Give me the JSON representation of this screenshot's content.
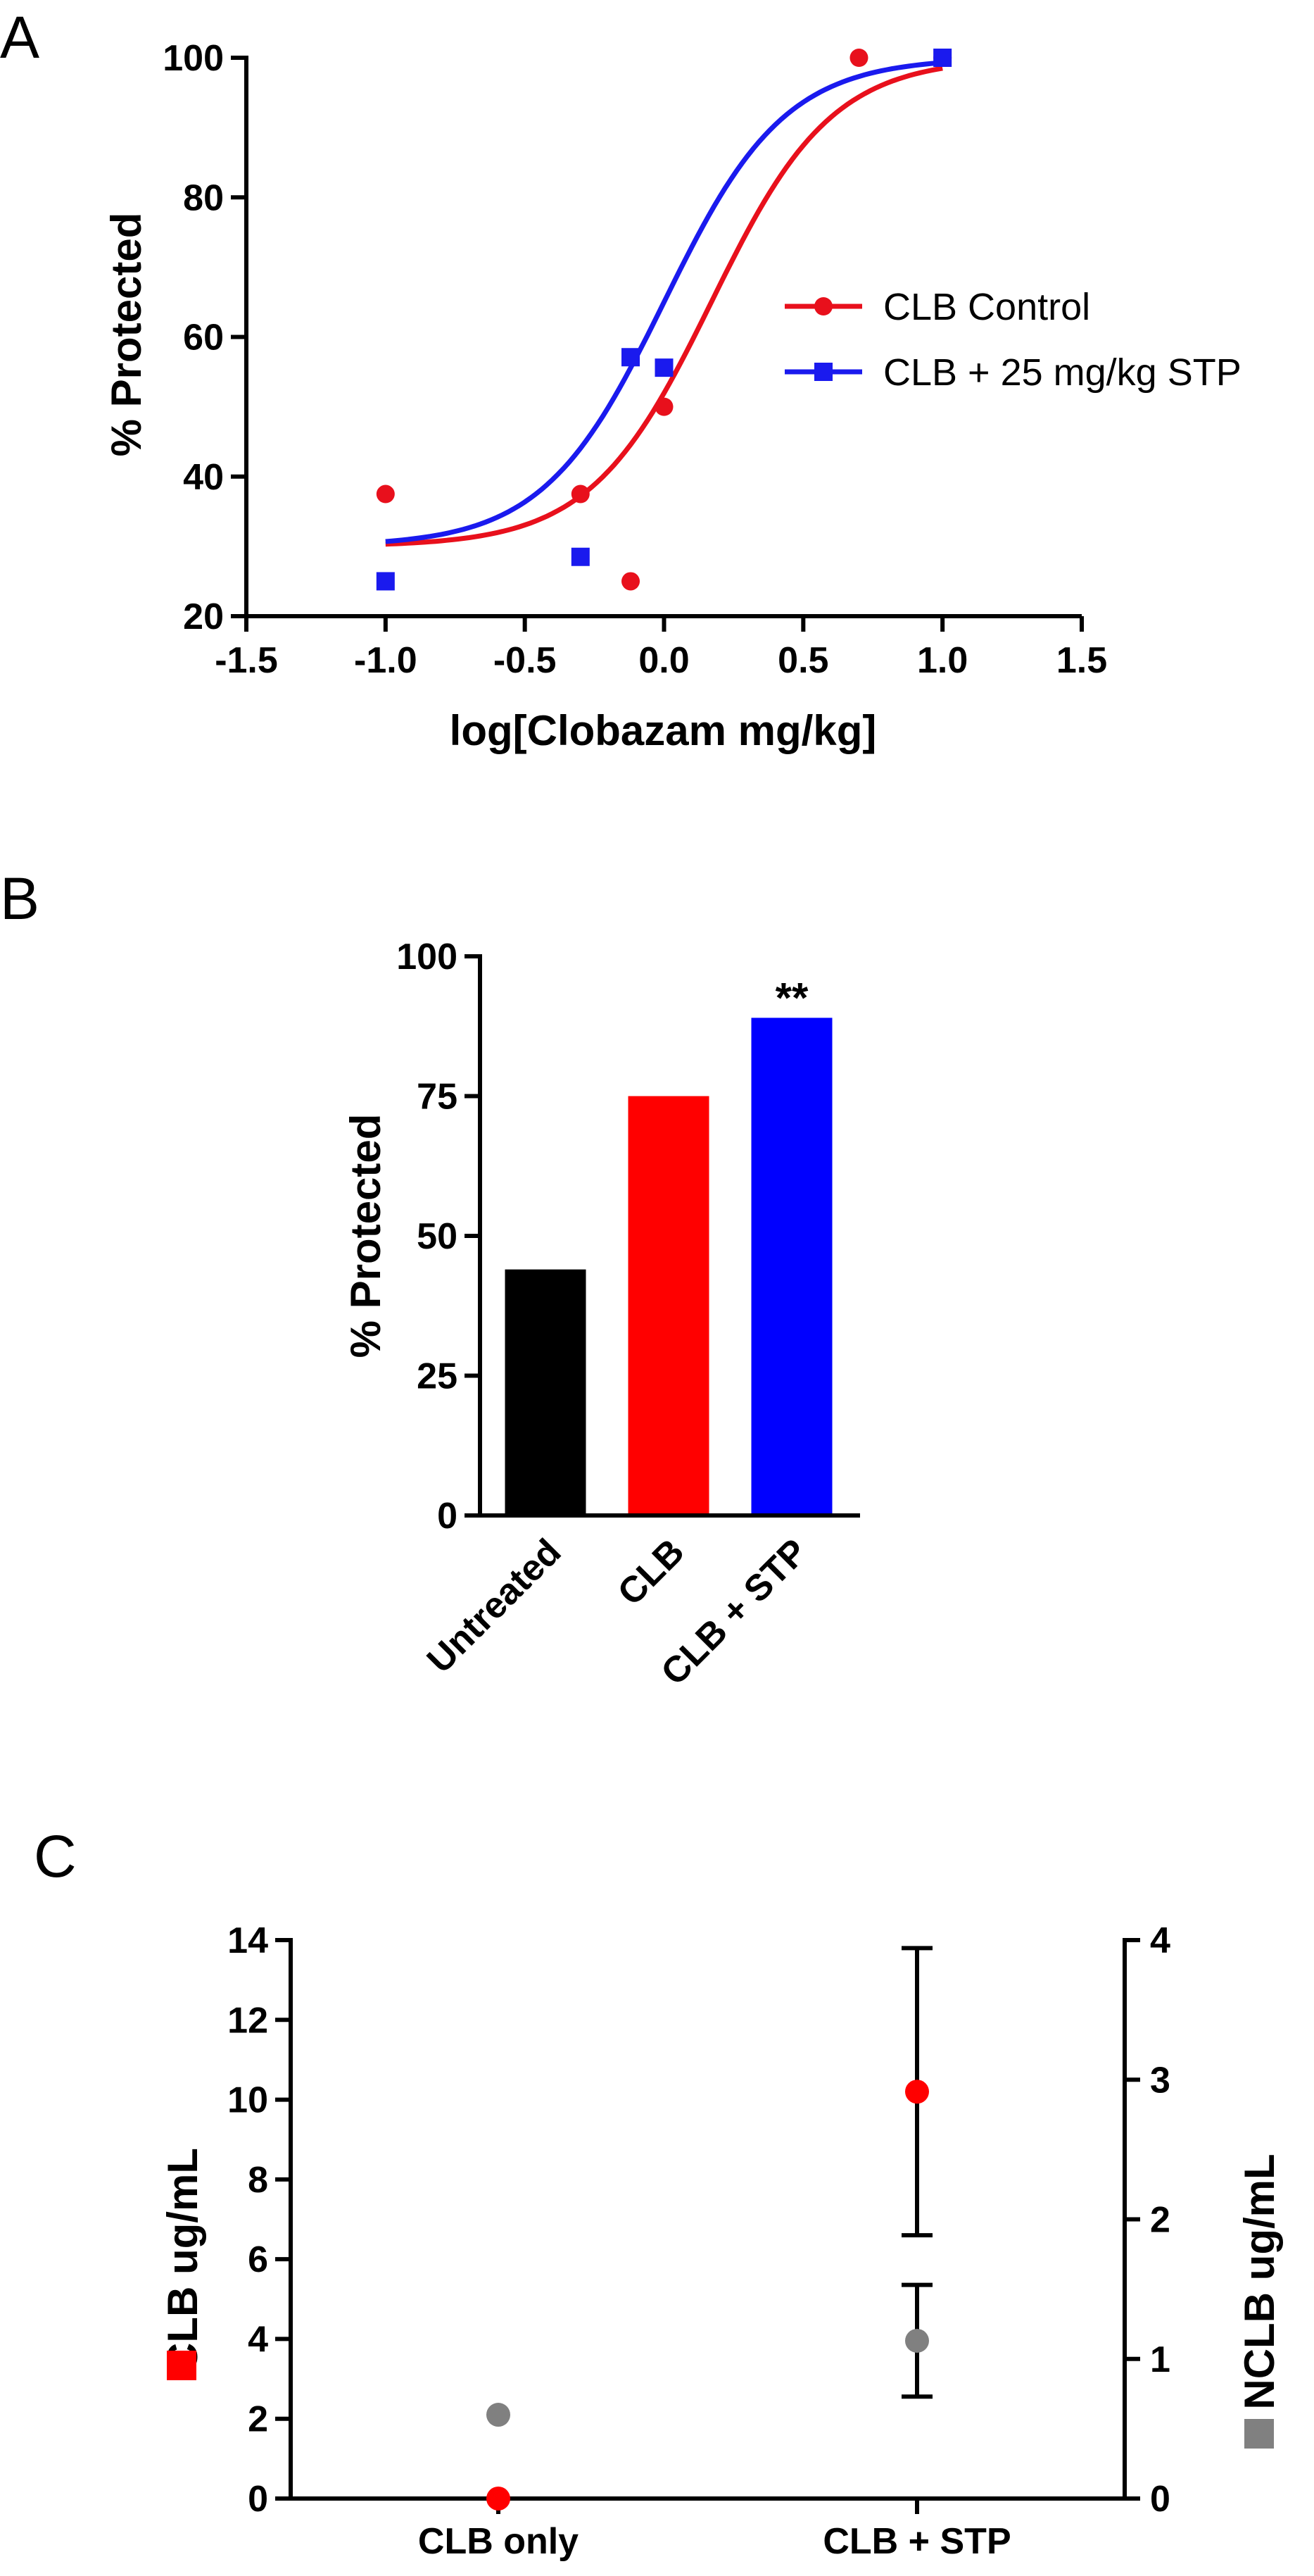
{
  "panels": {
    "a": "A",
    "b": "B",
    "c": "C"
  },
  "chart_data": [
    {
      "type": "scatter",
      "title": "",
      "xlabel": "log[Clobazam mg/kg]",
      "ylabel": "% Protected",
      "xlim": [
        -1.5,
        1.5
      ],
      "ylim": [
        20,
        100
      ],
      "x_ticks": [
        -1.5,
        -1.0,
        -0.5,
        0.0,
        0.5,
        1.0,
        1.5
      ],
      "x_tick_labels": [
        "-1.5",
        "-1.0",
        "-0.5",
        "0.0",
        "0.5",
        "1.0",
        "1.5"
      ],
      "y_ticks": [
        20,
        40,
        60,
        80,
        100
      ],
      "y_tick_labels": [
        "20",
        "40",
        "60",
        "80",
        "100"
      ],
      "legend_position": "right",
      "series": [
        {
          "name": "CLB Control",
          "color": "#e8101c",
          "marker": "circle",
          "points": [
            {
              "x": -1.0,
              "y": 37.5
            },
            {
              "x": -0.3,
              "y": 37.5
            },
            {
              "x": -0.12,
              "y": 25
            },
            {
              "x": 0.0,
              "y": 50
            },
            {
              "x": 0.7,
              "y": 100
            },
            {
              "x": 1.0,
              "y": 100
            }
          ],
          "fit": {
            "bottom": 30,
            "top": 100,
            "logEC50": 0.17,
            "hill": 2.0
          }
        },
        {
          "name": "CLB + 25 mg/kg STP",
          "color": "#1a1aee",
          "marker": "square",
          "points": [
            {
              "x": -1.0,
              "y": 25
            },
            {
              "x": -0.3,
              "y": 28.5
            },
            {
              "x": -0.12,
              "y": 57.1
            },
            {
              "x": 0.0,
              "y": 55.6
            },
            {
              "x": 1.0,
              "y": 100
            }
          ],
          "fit": {
            "bottom": 30,
            "top": 100,
            "logEC50": 0.0,
            "hill": 2.0
          }
        }
      ]
    },
    {
      "type": "bar",
      "title": "",
      "xlabel": "",
      "ylabel": "% Protected",
      "ylim": [
        0,
        100
      ],
      "y_ticks": [
        0,
        25,
        50,
        75,
        100
      ],
      "y_tick_labels": [
        "0",
        "25",
        "50",
        "75",
        "100"
      ],
      "categories": [
        "Untreated",
        "CLB",
        "CLB + STP"
      ],
      "values": [
        44,
        75,
        89
      ],
      "colors": [
        "#000000",
        "#ff0000",
        "#0000ff"
      ],
      "annotations": [
        {
          "category": "CLB + STP",
          "text": "**"
        }
      ]
    },
    {
      "type": "scatter",
      "title": "",
      "xlabel": "",
      "ylabel": "CLB ug/mL",
      "ylabel_right": "NCLB ug/mL",
      "ylim": [
        0,
        14
      ],
      "ylim_right": [
        0,
        4
      ],
      "y_ticks": [
        0,
        2,
        4,
        6,
        8,
        10,
        12,
        14
      ],
      "y_tick_labels": [
        "0",
        "2",
        "4",
        "6",
        "8",
        "10",
        "12",
        "14"
      ],
      "y_ticks_right": [
        0,
        1,
        2,
        3,
        4
      ],
      "y_tick_labels_right": [
        "0",
        "1",
        "2",
        "3",
        "4"
      ],
      "categories": [
        "CLB only",
        "CLB + STP"
      ],
      "series": [
        {
          "name": "CLB",
          "axis": "left",
          "color": "#ff0000",
          "values": [
            0,
            10.2
          ],
          "error": [
            0,
            3.6
          ]
        },
        {
          "name": "NCLB",
          "axis": "right",
          "color": "#808080",
          "values": [
            0.6,
            1.13
          ],
          "error": [
            0,
            0.4
          ]
        }
      ]
    }
  ]
}
